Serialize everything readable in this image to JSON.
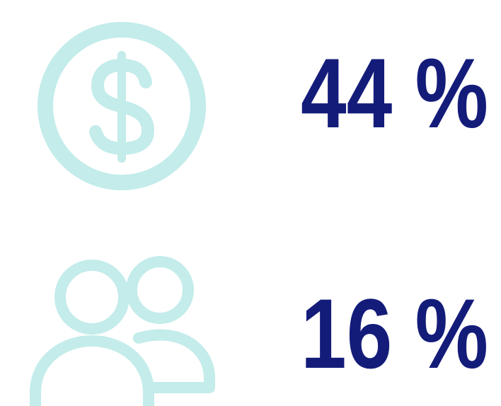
{
  "stats": [
    {
      "value": "44 %"
    },
    {
      "value": "16 %"
    }
  ]
}
